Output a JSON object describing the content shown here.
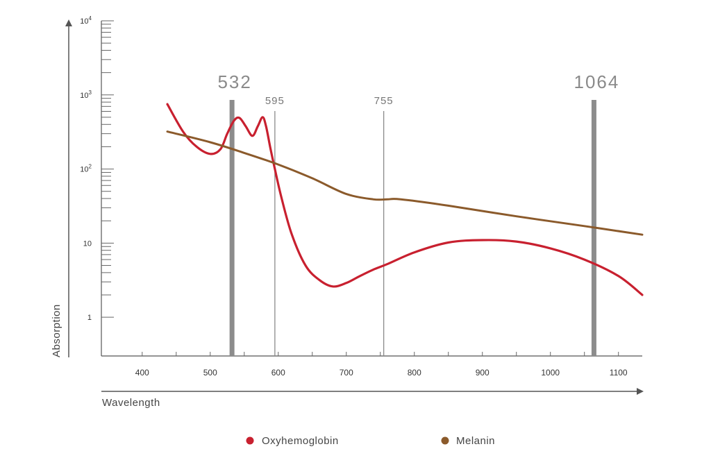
{
  "chart_data": {
    "type": "line",
    "xlabel": "Wavelength",
    "ylabel": "Absorption",
    "x_ticks": [
      400,
      500,
      600,
      700,
      800,
      900,
      1000,
      1100
    ],
    "x_tick_labels": [
      "400",
      "500",
      "600",
      "700",
      "800",
      "900",
      "1000",
      "1100"
    ],
    "xlim": [
      340,
      1135
    ],
    "y_scale": "log",
    "ylim": [
      0.3,
      10000
    ],
    "y_ticks": [
      1,
      10,
      100,
      1000,
      10000
    ],
    "y_tick_labels": [
      {
        "base": "1",
        "exp": ""
      },
      {
        "base": "10",
        "exp": ""
      },
      {
        "base": "10",
        "exp": "2"
      },
      {
        "base": "10",
        "exp": "3"
      },
      {
        "base": "10",
        "exp": "4"
      }
    ],
    "grid": false,
    "legend_position": "bottom",
    "markers": [
      {
        "label": "532",
        "x": 532,
        "style": "thick"
      },
      {
        "label": "595",
        "x": 595,
        "style": "thin"
      },
      {
        "label": "755",
        "x": 755,
        "style": "thin"
      },
      {
        "label": "1064",
        "x": 1064,
        "style": "thick"
      }
    ],
    "series": [
      {
        "name": "Oxyhemoglobin",
        "color": "#c8202f",
        "x": [
          437,
          460,
          480,
          500,
          515,
          525,
          535,
          543,
          552,
          562,
          570,
          577,
          582,
          588,
          595,
          605,
          620,
          640,
          660,
          680,
          700,
          720,
          740,
          760,
          800,
          850,
          900,
          950,
          1000,
          1050,
          1100,
          1135
        ],
        "y": [
          750,
          320,
          200,
          160,
          185,
          300,
          450,
          490,
          380,
          280,
          380,
          500,
          380,
          200,
          100,
          40,
          13,
          5,
          3.2,
          2.6,
          2.9,
          3.6,
          4.4,
          5.2,
          7.5,
          10.2,
          11,
          10.5,
          8.5,
          6,
          3.6,
          2
        ]
      },
      {
        "name": "Melanin",
        "color": "#8b5a2b",
        "x": [
          437,
          500,
          550,
          600,
          650,
          700,
          740,
          760,
          780,
          850,
          950,
          1050,
          1135
        ],
        "y": [
          320,
          230,
          165,
          115,
          75,
          46,
          39,
          39,
          39,
          32,
          23,
          17,
          13
        ]
      }
    ]
  }
}
